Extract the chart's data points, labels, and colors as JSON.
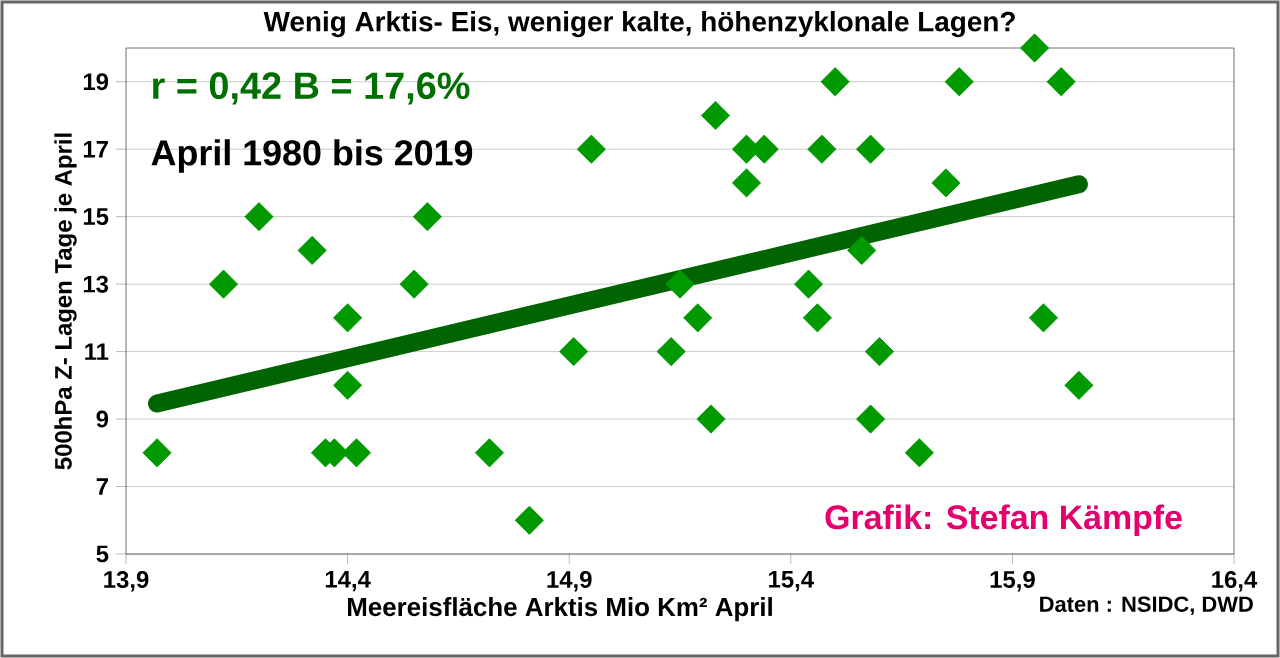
{
  "chart_data": {
    "type": "scatter",
    "title": "Wenig Arktis- Eis, weniger kalte, höhenzyklonale Lagen?",
    "xlabel": "Meereisfläche Arktis Mio Km² April",
    "ylabel": "500hPa Z- Lagen Tage je April",
    "series": [
      {
        "color": "#009900",
        "x": [
          13.97,
          14.12,
          14.2,
          14.32,
          14.4,
          14.4,
          14.35,
          14.37,
          14.42,
          14.55,
          14.58,
          14.72,
          14.81,
          14.91,
          14.95,
          15.13,
          15.15,
          15.19,
          15.22,
          15.23,
          15.95,
          15.5,
          15.78,
          16.01,
          15.3,
          15.34,
          15.47,
          15.58,
          15.3,
          15.75,
          15.56,
          15.44,
          15.46,
          15.97,
          15.6,
          16.05,
          15.58,
          15.69
        ],
        "values": [
          8,
          13,
          15,
          14,
          12,
          10,
          8,
          8,
          8,
          13,
          15,
          8,
          6,
          11,
          17,
          11,
          13,
          12,
          9,
          18,
          20,
          19,
          19,
          19,
          17,
          17,
          17,
          17,
          16,
          16,
          14,
          13,
          12,
          12,
          11,
          10,
          9,
          8
        ]
      },
      {
        "type": "line",
        "marker": "none",
        "color": "#006400",
        "x": [
          13.97,
          16.05
        ],
        "values": [
          9.46,
          15.96
        ]
      }
    ],
    "xlim": [
      13.9,
      16.4
    ],
    "ylim": [
      5,
      20
    ],
    "xticks": [
      {
        "value": 13.9,
        "label": "13,9"
      },
      {
        "value": 14.4,
        "label": "14,4"
      },
      {
        "value": 14.9,
        "label": "14,9"
      },
      {
        "value": 15.4,
        "label": "15,4"
      },
      {
        "value": 15.9,
        "label": "15,9"
      },
      {
        "value": 16.4,
        "label": "16,4"
      }
    ],
    "yticks": [
      5,
      7,
      9,
      11,
      13,
      15,
      17,
      19
    ],
    "grid": "y",
    "marker": "diamond",
    "annotations": [
      "r = 0,42   B =  17,6%",
      "April 1980 bis 2019",
      "Grafik: Stefan Kämpfe",
      "Daten : NSIDC, DWD"
    ]
  }
}
